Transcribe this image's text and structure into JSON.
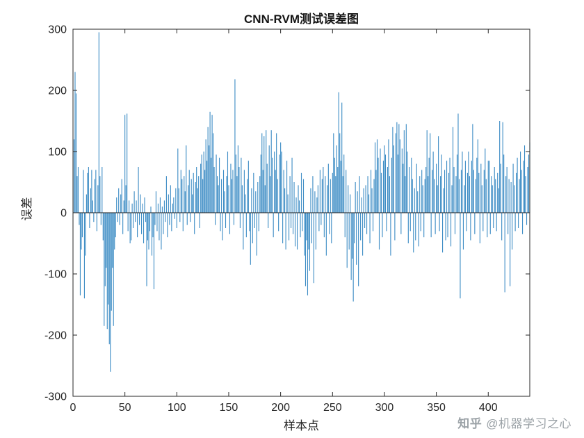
{
  "title": "CNN-RVM测试误差图",
  "watermark": {
    "logo": "知乎",
    "handle": "@机器学习之心"
  },
  "chart_data": {
    "type": "bar",
    "title": "CNN-RVM测试误差图",
    "xlabel": "样本点",
    "ylabel": "误差",
    "xlim": [
      0,
      440
    ],
    "ylim": [
      -300,
      300
    ],
    "xticks": [
      0,
      50,
      100,
      150,
      200,
      250,
      300,
      350,
      400
    ],
    "yticks": [
      -300,
      -200,
      -100,
      0,
      100,
      200,
      300
    ],
    "grid": false,
    "legend": "none",
    "bar_color": "#3E8DC5",
    "axis_color": "#262626",
    "values": [
      120,
      230,
      195,
      60,
      75,
      -20,
      -135,
      -60,
      -40,
      70,
      -140,
      -70,
      30,
      65,
      75,
      -25,
      40,
      70,
      20,
      -15,
      55,
      70,
      -30,
      45,
      295,
      60,
      -20,
      75,
      -45,
      -185,
      -120,
      -90,
      -190,
      -150,
      -215,
      -260,
      -160,
      -90,
      -185,
      -60,
      -40,
      25,
      -15,
      40,
      -20,
      30,
      55,
      -35,
      20,
      160,
      45,
      162,
      -30,
      20,
      -50,
      -45,
      15,
      -25,
      35,
      -15,
      20,
      -40,
      75,
      -20,
      30,
      -35,
      15,
      -50,
      25,
      -15,
      -120,
      -45,
      -60,
      -30,
      10,
      -70,
      -40,
      -125,
      -20,
      35,
      -30,
      15,
      -45,
      25,
      -60,
      10,
      -35,
      20,
      -15,
      60,
      -40,
      30,
      -20,
      45,
      -30,
      15,
      25,
      -10,
      40,
      -25,
      105,
      40,
      -15,
      70,
      55,
      -30,
      60,
      35,
      110,
      -20,
      45,
      70,
      -15,
      55,
      30,
      65,
      -35,
      50,
      75,
      40,
      60,
      -25,
      80,
      95,
      55,
      100,
      70,
      120,
      85,
      140,
      110,
      165,
      90,
      160,
      130,
      75,
      -20,
      95,
      60,
      45,
      90,
      -30,
      55,
      -45,
      70,
      35,
      -25,
      60,
      100,
      45,
      -35,
      80,
      55,
      70,
      -20,
      218,
      95,
      60,
      110,
      75,
      -25,
      90,
      45,
      -60,
      70,
      30,
      -40,
      55,
      85,
      -30,
      -85,
      40,
      -50,
      65,
      -25,
      35,
      -70,
      50,
      -30,
      60,
      95,
      130,
      70,
      125,
      45,
      135,
      80,
      -25,
      110,
      60,
      135,
      90,
      -40,
      100,
      70,
      130,
      55,
      -30,
      95,
      115,
      100,
      -50,
      70,
      40,
      -60,
      85,
      30,
      -45,
      60,
      -25,
      90,
      -35,
      50,
      -55,
      25,
      -60,
      45,
      20,
      -40,
      65,
      -30,
      55,
      -70,
      -120,
      -45,
      -135,
      -60,
      -95,
      40,
      -50,
      60,
      -115,
      35,
      -60,
      25,
      45,
      -30,
      70,
      -20,
      55,
      75,
      -40,
      60,
      -70,
      45,
      80,
      -35,
      55,
      -50,
      65,
      130,
      90,
      60,
      110,
      75,
      197,
      130,
      85,
      180,
      60,
      95,
      -40,
      70,
      -90,
      45,
      -60,
      30,
      -110,
      -75,
      -145,
      -50,
      50,
      -85,
      35,
      -120,
      60,
      -45,
      25,
      -70,
      40,
      -25,
      45,
      -35,
      60,
      30,
      -50,
      70,
      40,
      -30,
      55,
      115,
      70,
      120,
      90,
      -60,
      105,
      65,
      -40,
      85,
      110,
      95,
      -30,
      75,
      120,
      60,
      -70,
      90,
      140,
      110,
      -45,
      130,
      148,
      95,
      145,
      120,
      -35,
      105,
      80,
      135,
      60,
      145,
      100,
      -50,
      75,
      -30,
      90,
      55,
      -65,
      40,
      -45,
      80,
      35,
      -55,
      60,
      -30,
      70,
      45,
      -40,
      55,
      75,
      135,
      60,
      90,
      130,
      -40,
      70,
      100,
      55,
      -35,
      80,
      45,
      125,
      -30,
      60,
      95,
      -65,
      40,
      70,
      -45,
      85,
      -40,
      65,
      90,
      -55,
      45,
      140,
      75,
      -35,
      60,
      95,
      162,
      55,
      -140,
      70,
      100,
      -60,
      45,
      85,
      -30,
      65,
      100,
      60,
      -45,
      85,
      145,
      70,
      -35,
      55,
      90,
      120,
      65,
      -50,
      80,
      45,
      -30,
      70,
      105,
      55,
      -40,
      85,
      85,
      -35,
      60,
      45,
      -25,
      75,
      55,
      -30,
      65,
      40,
      150,
      80,
      -45,
      148,
      95,
      -130,
      60,
      75,
      -35,
      55,
      -120,
      50,
      -60,
      80,
      45,
      -30,
      65,
      90,
      -25,
      55,
      100,
      70,
      -35,
      85,
      110,
      60,
      -20,
      75,
      95,
      115
    ]
  }
}
